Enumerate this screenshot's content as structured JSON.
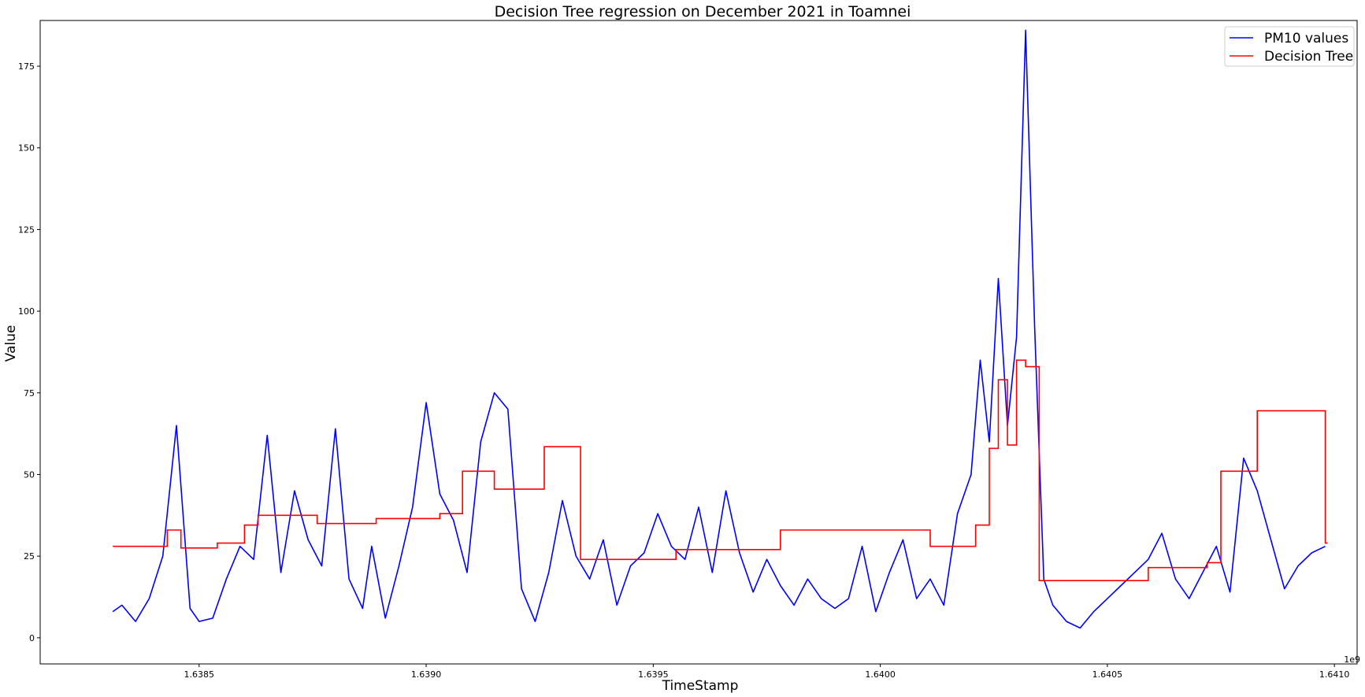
{
  "chart_data": {
    "type": "line",
    "title": "Decision Tree regression on December 2021 in Toamnei",
    "xlabel": "TimeStamp",
    "ylabel": "Value",
    "x_offset_text": "1e9",
    "xlim": [
      1.63815,
      1.64105
    ],
    "ylim": [
      -8,
      189
    ],
    "xticks": [
      1.6385,
      1.639,
      1.6395,
      1.64,
      1.6405,
      1.641
    ],
    "xtick_labels": [
      "1.6385",
      "1.6390",
      "1.6395",
      "1.6400",
      "1.6405",
      "1.6410"
    ],
    "yticks": [
      0,
      25,
      50,
      75,
      100,
      125,
      150,
      175
    ],
    "ytick_labels": [
      "0",
      "25",
      "50",
      "75",
      "100",
      "125",
      "150",
      "175"
    ],
    "grid": false,
    "legend": {
      "position": "top-right",
      "entries": [
        "PM10 values",
        "Decision Tree"
      ]
    },
    "colors": {
      "pm10": "#0000ff",
      "tree": "#ff0000"
    },
    "series": [
      {
        "name": "PM10 values",
        "x": [
          1.63831,
          1.63833,
          1.63836,
          1.63839,
          1.63842,
          1.63845,
          1.63848,
          1.6385,
          1.63853,
          1.63856,
          1.63859,
          1.63862,
          1.63865,
          1.63868,
          1.63871,
          1.63874,
          1.63877,
          1.6388,
          1.63883,
          1.63886,
          1.63888,
          1.63891,
          1.63894,
          1.63897,
          1.639,
          1.63903,
          1.63906,
          1.63909,
          1.63912,
          1.63915,
          1.63918,
          1.63921,
          1.63924,
          1.63927,
          1.6393,
          1.63933,
          1.63936,
          1.63939,
          1.63942,
          1.63945,
          1.63948,
          1.63951,
          1.63954,
          1.63957,
          1.6396,
          1.63963,
          1.63966,
          1.63969,
          1.63972,
          1.63975,
          1.63978,
          1.63981,
          1.63984,
          1.63987,
          1.6399,
          1.63993,
          1.63996,
          1.63999,
          1.64002,
          1.64005,
          1.64008,
          1.64011,
          1.64014,
          1.64017,
          1.6402,
          1.64022,
          1.64024,
          1.64026,
          1.64028,
          1.6403,
          1.64032,
          1.64034,
          1.64036,
          1.64038,
          1.64041,
          1.64044,
          1.64047,
          1.6405,
          1.64053,
          1.64056,
          1.64059,
          1.64062,
          1.64065,
          1.64068,
          1.64071,
          1.64074,
          1.64077,
          1.6408,
          1.64083,
          1.64086,
          1.64089,
          1.64092,
          1.64095,
          1.64098
        ],
        "values": [
          8,
          10,
          5,
          12,
          25,
          65,
          9,
          5,
          6,
          18,
          28,
          24,
          62,
          20,
          45,
          30,
          22,
          64,
          18,
          9,
          28,
          6,
          22,
          40,
          72,
          44,
          36,
          20,
          60,
          75,
          70,
          15,
          5,
          20,
          42,
          25,
          18,
          30,
          10,
          22,
          26,
          38,
          28,
          24,
          40,
          20,
          45,
          26,
          14,
          24,
          16,
          10,
          18,
          12,
          9,
          12,
          28,
          8,
          20,
          30,
          12,
          18,
          10,
          38,
          50,
          85,
          60,
          110,
          65,
          92,
          186,
          95,
          18,
          10,
          5,
          3,
          8,
          12,
          16,
          20,
          24,
          32,
          18,
          12,
          20,
          28,
          14,
          55,
          45,
          30,
          15,
          22,
          26,
          28
        ]
      },
      {
        "name": "Decision Tree",
        "x": [
          1.63831,
          1.63843,
          1.63846,
          1.63854,
          1.6386,
          1.63863,
          1.63876,
          1.63889,
          1.63903,
          1.63908,
          1.63915,
          1.63926,
          1.63934,
          1.63955,
          1.63978,
          1.64011,
          1.64021,
          1.64024,
          1.64026,
          1.64028,
          1.6403,
          1.64032,
          1.64035,
          1.64053,
          1.64059,
          1.64072,
          1.64075,
          1.64083,
          1.64098
        ],
        "values": [
          28,
          33,
          27.5,
          29,
          34.5,
          37.5,
          35,
          36.5,
          38,
          51,
          45.5,
          58.5,
          24,
          27,
          33,
          28,
          34.5,
          58,
          79,
          59,
          85,
          83,
          17.5,
          17.5,
          21.5,
          23,
          51,
          69.5,
          29
        ]
      }
    ]
  }
}
